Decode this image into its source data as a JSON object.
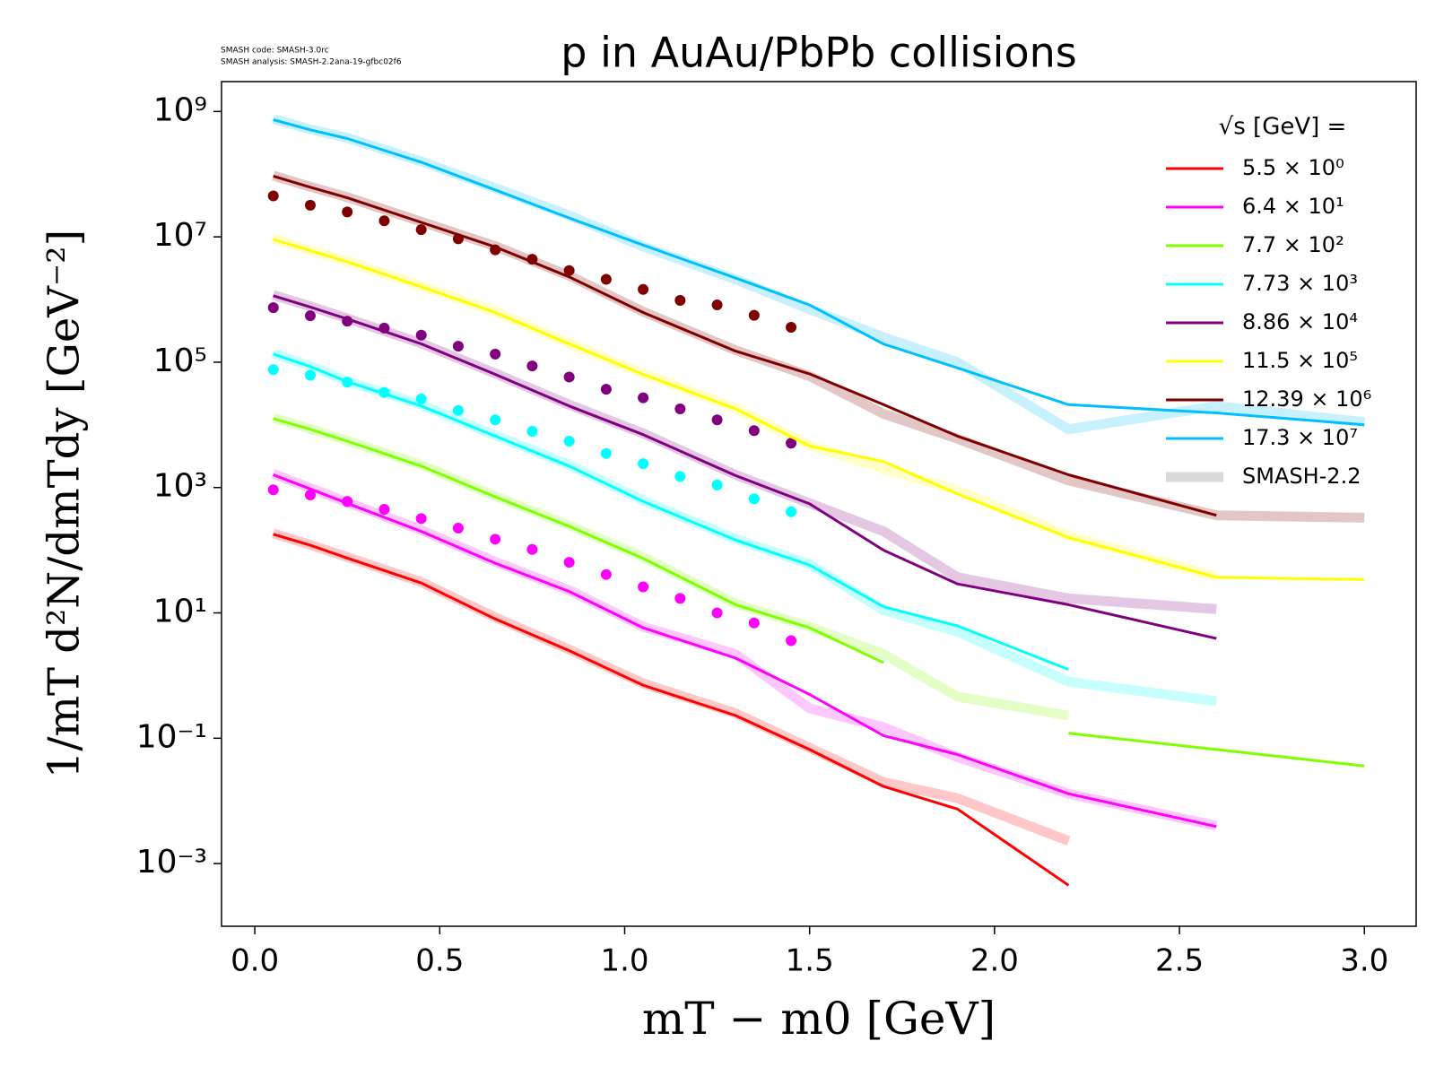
{
  "chart_data": {
    "type": "line",
    "title": "p in AuAu/PbPb collisions",
    "notes": [
      "SMASH code:      SMASH-3.0rc",
      "SMASH analysis: SMASH-2.2ana-19-gfbc02f6"
    ],
    "x_label": "mT − m0 [GeV]",
    "y_label": "1/mT d²N/dmTdy [GeV⁻²]",
    "legend_title": "√s  [GeV] =",
    "legend": "upper right",
    "log_y": true,
    "reference_name": "SMASH-2.2",
    "reference_color": "#d9d9d9",
    "xlim": [
      -0.09,
      3.14
    ],
    "xticks": [
      {
        "value": 0,
        "label": "0.0"
      },
      0.5,
      {
        "value": 1,
        "label": "1.0"
      },
      1.5,
      {
        "value": 2,
        "label": "2.0"
      },
      2.5,
      {
        "value": 3,
        "label": "3.0"
      }
    ],
    "ylim": [
      0.0001,
      3000000000
    ],
    "yticks": [
      {
        "value": 1000000000,
        "label": "10⁹"
      },
      {
        "value": 10000000,
        "label": "10⁷"
      },
      {
        "value": 100000,
        "label": "10⁵"
      },
      {
        "value": 1000,
        "label": "10³"
      },
      {
        "value": 10,
        "label": "10¹"
      },
      {
        "value": 0.1,
        "label": "10⁻¹"
      },
      {
        "value": 0.001,
        "label": "10⁻³"
      }
    ],
    "x": [
      0.05,
      0.15,
      0.25,
      0.45,
      0.65,
      0.85,
      1.05,
      1.3,
      1.5,
      1.7,
      1.9,
      2.2,
      2.6,
      3.0
    ],
    "points_x": [
      0.05,
      0.15,
      0.25,
      0.35,
      0.45,
      0.55,
      0.65,
      0.75,
      0.85,
      0.95,
      1.05,
      1.15,
      1.25,
      1.35,
      1.45
    ],
    "series": [
      {
        "name": "5.5 × 10⁰",
        "color": "#ff0000",
        "values": [
          180,
          120,
          75,
          30,
          8,
          2.5,
          0.7,
          0.23,
          0.066,
          0.017,
          0.0074,
          0.00045,
          null,
          null
        ],
        "reference": [
          185,
          122,
          78,
          31,
          8.5,
          2.6,
          0.75,
          0.25,
          0.07,
          0.02,
          0.011,
          0.0023,
          null,
          null
        ]
      },
      {
        "name": "6.4 × 10¹",
        "color": "#ff00ff",
        "values": [
          1600,
          950,
          560,
          200,
          62,
          22,
          5.8,
          1.9,
          0.5,
          0.11,
          0.055,
          0.013,
          0.0039,
          null
        ],
        "reference": [
          1650,
          980,
          580,
          210,
          65,
          23,
          6,
          2.2,
          0.3,
          0.15,
          0.05,
          0.013,
          0.004,
          null
        ],
        "points": [
          920,
          760,
          600,
          450,
          320,
          225,
          150,
          103,
          64,
          41,
          26,
          17,
          10,
          6.9,
          3.6
        ]
      },
      {
        "name": "7.7 × 10²",
        "color": "#7fff00",
        "values": [
          12600,
          8500,
          5500,
          2200,
          710,
          240,
          74,
          13.5,
          5.8,
          1.6,
          null,
          0.12,
          0.066,
          0.036
        ],
        "reference": [
          13000,
          8700,
          5600,
          2300,
          730,
          250,
          78,
          14,
          6,
          2.2,
          0.46,
          0.23,
          null,
          null
        ]
      },
      {
        "name": "7.73 × 10³",
        "color": "#00ffff",
        "values": [
          135000,
          85000,
          49000,
          20000,
          6600,
          2200,
          600,
          145,
          58,
          12.5,
          6.2,
          1.25,
          null,
          null
        ],
        "reference": [
          138000,
          87000,
          50000,
          21000,
          6800,
          2300,
          620,
          150,
          60,
          11,
          5,
          0.8,
          0.39,
          null
        ],
        "points": [
          76000,
          62000,
          48000,
          33000,
          26000,
          17000,
          12000,
          7900,
          5500,
          3500,
          2400,
          1500,
          1100,
          660,
          410
        ]
      },
      {
        "name": "8.86 × 10⁴",
        "color": "#800080",
        "values": [
          1150000,
          760000,
          490000,
          196000,
          64000,
          20000,
          7000,
          1550,
          550,
          100,
          29,
          13.5,
          3.9,
          null
        ],
        "reference": [
          1180000,
          780000,
          500000,
          200000,
          66000,
          21000,
          7300,
          1600,
          560,
          200,
          37,
          17,
          11.5,
          null
        ],
        "points": [
          740000,
          550000,
          450000,
          350000,
          270000,
          180000,
          135000,
          87000,
          58000,
          37000,
          27000,
          18000,
          12000,
          8100,
          5100
        ]
      },
      {
        "name": "11.5 × 10⁵",
        "color": "#ffff00",
        "values": [
          9100000,
          6000000,
          4000000,
          1600000,
          620000,
          196000,
          64000,
          18000,
          4600,
          2600,
          790,
          160,
          37,
          34
        ],
        "reference": [
          9300000,
          6100000,
          4100000,
          1650000,
          640000,
          200000,
          66000,
          18500,
          4700,
          2000,
          900,
          170,
          38,
          null
        ]
      },
      {
        "name": "12.39 × 10⁶",
        "color": "#800000",
        "values": [
          93000000,
          62000000,
          42000000,
          17000000,
          6900000,
          2300000,
          620000,
          150000,
          65000,
          21000,
          6600,
          1600,
          360,
          null
        ],
        "reference": [
          95000000,
          63000000,
          43000000,
          17500000,
          7100000,
          2400000,
          640000,
          155000,
          60000,
          15000,
          6000,
          1300,
          360,
          330
        ],
        "points": [
          45000000,
          32000000,
          25000000,
          18000000,
          13000000,
          9300000,
          6200000,
          4400000,
          2900000,
          2100000,
          1450000,
          970000,
          820000,
          560000,
          360000
        ]
      },
      {
        "name": "17.3 × 10⁷",
        "color": "#00bfff",
        "values": [
          740000000,
          510000000,
          370000000,
          155000000,
          56000000,
          20000000,
          7400000,
          2200000,
          820000,
          195000,
          81000,
          21000,
          15500,
          10000
        ],
        "reference": [
          760000000,
          520000000,
          380000000,
          160000000,
          60000000,
          22000000,
          7000000,
          2100000,
          700000,
          250000,
          100000,
          8500,
          20000,
          11000
        ]
      }
    ]
  }
}
